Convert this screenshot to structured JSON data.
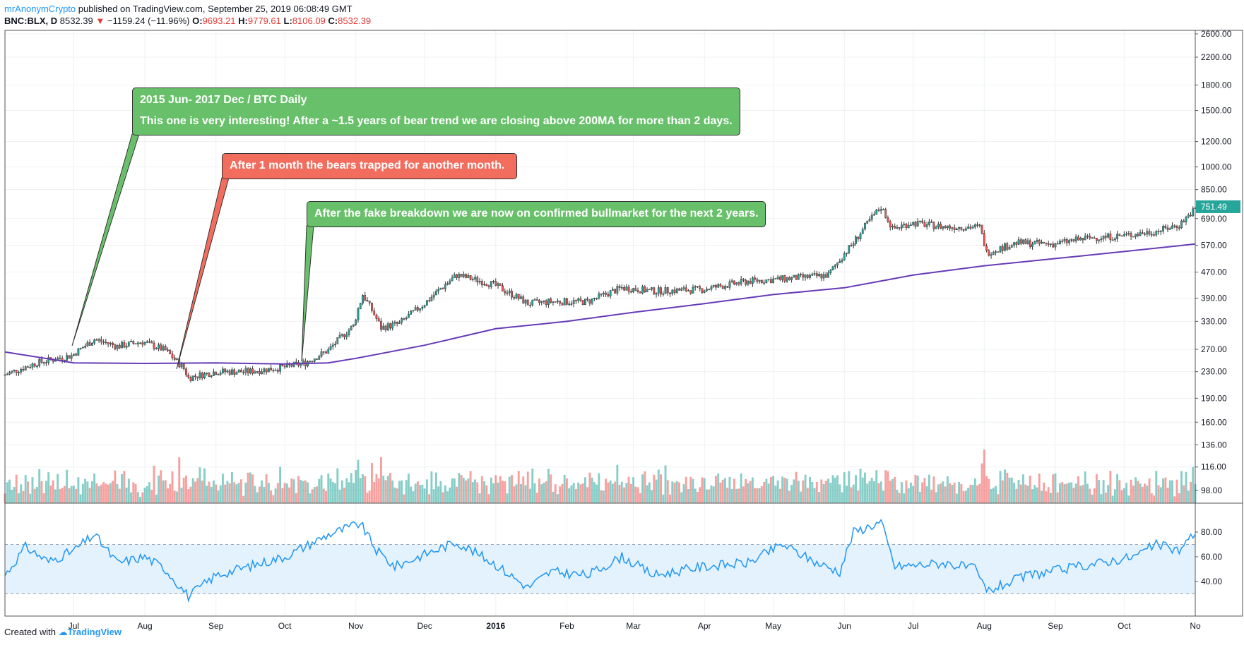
{
  "header": {
    "author": "mrAnonymCrypto",
    "published": "published on TradingView.com, September 25, 2019 06:08:49 GMT",
    "symbol": "BNC:BLX, D",
    "last": "8532.39",
    "change": "−1159.24 (−11.96%)",
    "o_label": "O:",
    "o": "9693.21",
    "h_label": "H:",
    "h": "9779.61",
    "l_label": "L:",
    "l": "8106.09",
    "c_label": "C:",
    "c": "8532.39"
  },
  "footer": {
    "created": "Created with",
    "brand": "TradingView"
  },
  "annotations": [
    {
      "color": "green",
      "lines": [
        "2015 Jun- 2017 Dec / BTC Daily",
        "This one is very interesting! After a ~1.5 years of bear trend we are closing above 200MA for more than 2 days."
      ]
    },
    {
      "color": "red",
      "lines": [
        "After 1 month   the bears trapped for another month."
      ]
    },
    {
      "color": "green",
      "lines": [
        "After the fake breakdown we are now on confirmed bullmarket for the next 2 years."
      ]
    }
  ],
  "colors": {
    "up": "#26a69a",
    "down": "#ef5350",
    "ma": "#673ab7",
    "rsi": "#2196f3",
    "last_price_tag": "#26a69a",
    "rsi_band": "#e3f2fd"
  },
  "chart_data": {
    "type": "candlestick",
    "scale": "log",
    "x_start": "2015-06-01",
    "x_end": "2016-11-01",
    "x_ticks": [
      {
        "date": "2015-07-01",
        "label": "Jul"
      },
      {
        "date": "2015-08-01",
        "label": "Aug"
      },
      {
        "date": "2015-09-01",
        "label": "Sep"
      },
      {
        "date": "2015-10-01",
        "label": "Oct"
      },
      {
        "date": "2015-11-01",
        "label": "Nov"
      },
      {
        "date": "2015-12-01",
        "label": "Dec"
      },
      {
        "date": "2016-01-01",
        "label": "2016"
      },
      {
        "date": "2016-02-01",
        "label": "Feb"
      },
      {
        "date": "2016-03-01",
        "label": "Mar"
      },
      {
        "date": "2016-04-01",
        "label": "Apr"
      },
      {
        "date": "2016-05-01",
        "label": "May"
      },
      {
        "date": "2016-06-01",
        "label": "Jun"
      },
      {
        "date": "2016-07-01",
        "label": "Jul"
      },
      {
        "date": "2016-08-01",
        "label": "Aug"
      },
      {
        "date": "2016-09-01",
        "label": "Sep"
      },
      {
        "date": "2016-10-01",
        "label": "Oct"
      },
      {
        "date": "2016-11-01",
        "label": "No"
      }
    ],
    "y_ticks": [
      "2600.00",
      "2200.00",
      "1800.00",
      "1500.00",
      "1200.00",
      "1000.00",
      "850.00",
      "690.00",
      "570.00",
      "470.00",
      "390.00",
      "330.00",
      "270.00",
      "230.00",
      "190.00",
      "160.00",
      "136.00",
      "116.00",
      "98.00"
    ],
    "last_price_label": "751.49",
    "price_anchors": [
      [
        "2015-06-01",
        225
      ],
      [
        "2015-06-15",
        245
      ],
      [
        "2015-06-30",
        258
      ],
      [
        "2015-07-10",
        290
      ],
      [
        "2015-07-20",
        276
      ],
      [
        "2015-07-31",
        285
      ],
      [
        "2015-08-10",
        268
      ],
      [
        "2015-08-18",
        235
      ],
      [
        "2015-08-20",
        220
      ],
      [
        "2015-09-01",
        230
      ],
      [
        "2015-09-15",
        230
      ],
      [
        "2015-09-30",
        237
      ],
      [
        "2015-10-10",
        245
      ],
      [
        "2015-10-20",
        268
      ],
      [
        "2015-10-31",
        320
      ],
      [
        "2015-11-04",
        400
      ],
      [
        "2015-11-12",
        315
      ],
      [
        "2015-11-20",
        325
      ],
      [
        "2015-12-01",
        375
      ],
      [
        "2015-12-15",
        460
      ],
      [
        "2015-12-31",
        430
      ],
      [
        "2016-01-15",
        375
      ],
      [
        "2016-01-25",
        380
      ],
      [
        "2016-02-10",
        380
      ],
      [
        "2016-02-25",
        420
      ],
      [
        "2016-03-10",
        410
      ],
      [
        "2016-03-31",
        415
      ],
      [
        "2016-04-20",
        440
      ],
      [
        "2016-05-10",
        450
      ],
      [
        "2016-05-25",
        460
      ],
      [
        "2016-06-05",
        580
      ],
      [
        "2016-06-12",
        680
      ],
      [
        "2016-06-17",
        750
      ],
      [
        "2016-06-22",
        640
      ],
      [
        "2016-06-30",
        670
      ],
      [
        "2016-07-15",
        650
      ],
      [
        "2016-07-30",
        650
      ],
      [
        "2016-08-02",
        540
      ],
      [
        "2016-08-15",
        580
      ],
      [
        "2016-08-31",
        575
      ],
      [
        "2016-09-15",
        600
      ],
      [
        "2016-09-30",
        610
      ],
      [
        "2016-10-15",
        630
      ],
      [
        "2016-10-25",
        660
      ],
      [
        "2016-11-01",
        740
      ]
    ],
    "ma200_anchors": [
      [
        "2015-06-01",
        265
      ],
      [
        "2015-07-01",
        245
      ],
      [
        "2015-08-01",
        244
      ],
      [
        "2015-09-01",
        245
      ],
      [
        "2015-10-01",
        243
      ],
      [
        "2015-10-20",
        245
      ],
      [
        "2015-11-01",
        253
      ],
      [
        "2015-12-01",
        278
      ],
      [
        "2016-01-01",
        313
      ],
      [
        "2016-02-01",
        330
      ],
      [
        "2016-03-01",
        352
      ],
      [
        "2016-04-01",
        375
      ],
      [
        "2016-05-01",
        400
      ],
      [
        "2016-06-01",
        420
      ],
      [
        "2016-07-01",
        460
      ],
      [
        "2016-08-01",
        492
      ],
      [
        "2016-09-01",
        518
      ],
      [
        "2016-10-01",
        545
      ],
      [
        "2016-11-01",
        575
      ]
    ],
    "rsi_ticks": [
      "80.00",
      "60.00",
      "40.00"
    ],
    "rsi_band": [
      30,
      70
    ],
    "rsi_anchors": [
      [
        "2015-06-01",
        45
      ],
      [
        "2015-06-10",
        68
      ],
      [
        "2015-06-20",
        56
      ],
      [
        "2015-07-01",
        65
      ],
      [
        "2015-07-10",
        78
      ],
      [
        "2015-07-20",
        55
      ],
      [
        "2015-08-01",
        60
      ],
      [
        "2015-08-10",
        50
      ],
      [
        "2015-08-20",
        28
      ],
      [
        "2015-09-01",
        45
      ],
      [
        "2015-09-15",
        52
      ],
      [
        "2015-10-01",
        60
      ],
      [
        "2015-10-20",
        78
      ],
      [
        "2015-11-03",
        87
      ],
      [
        "2015-11-10",
        65
      ],
      [
        "2015-11-18",
        52
      ],
      [
        "2015-12-01",
        62
      ],
      [
        "2015-12-15",
        72
      ],
      [
        "2015-12-31",
        55
      ],
      [
        "2016-01-15",
        35
      ],
      [
        "2016-01-25",
        48
      ],
      [
        "2016-02-10",
        45
      ],
      [
        "2016-02-25",
        60
      ],
      [
        "2016-03-10",
        45
      ],
      [
        "2016-03-31",
        52
      ],
      [
        "2016-04-20",
        55
      ],
      [
        "2016-05-05",
        70
      ],
      [
        "2016-05-20",
        55
      ],
      [
        "2016-05-30",
        48
      ],
      [
        "2016-06-05",
        80
      ],
      [
        "2016-06-17",
        88
      ],
      [
        "2016-06-23",
        52
      ],
      [
        "2016-07-15",
        55
      ],
      [
        "2016-07-28",
        50
      ],
      [
        "2016-08-02",
        32
      ],
      [
        "2016-08-20",
        45
      ],
      [
        "2016-09-05",
        50
      ],
      [
        "2016-09-20",
        55
      ],
      [
        "2016-10-05",
        60
      ],
      [
        "2016-10-15",
        70
      ],
      [
        "2016-10-25",
        65
      ],
      [
        "2016-11-01",
        80
      ]
    ]
  }
}
